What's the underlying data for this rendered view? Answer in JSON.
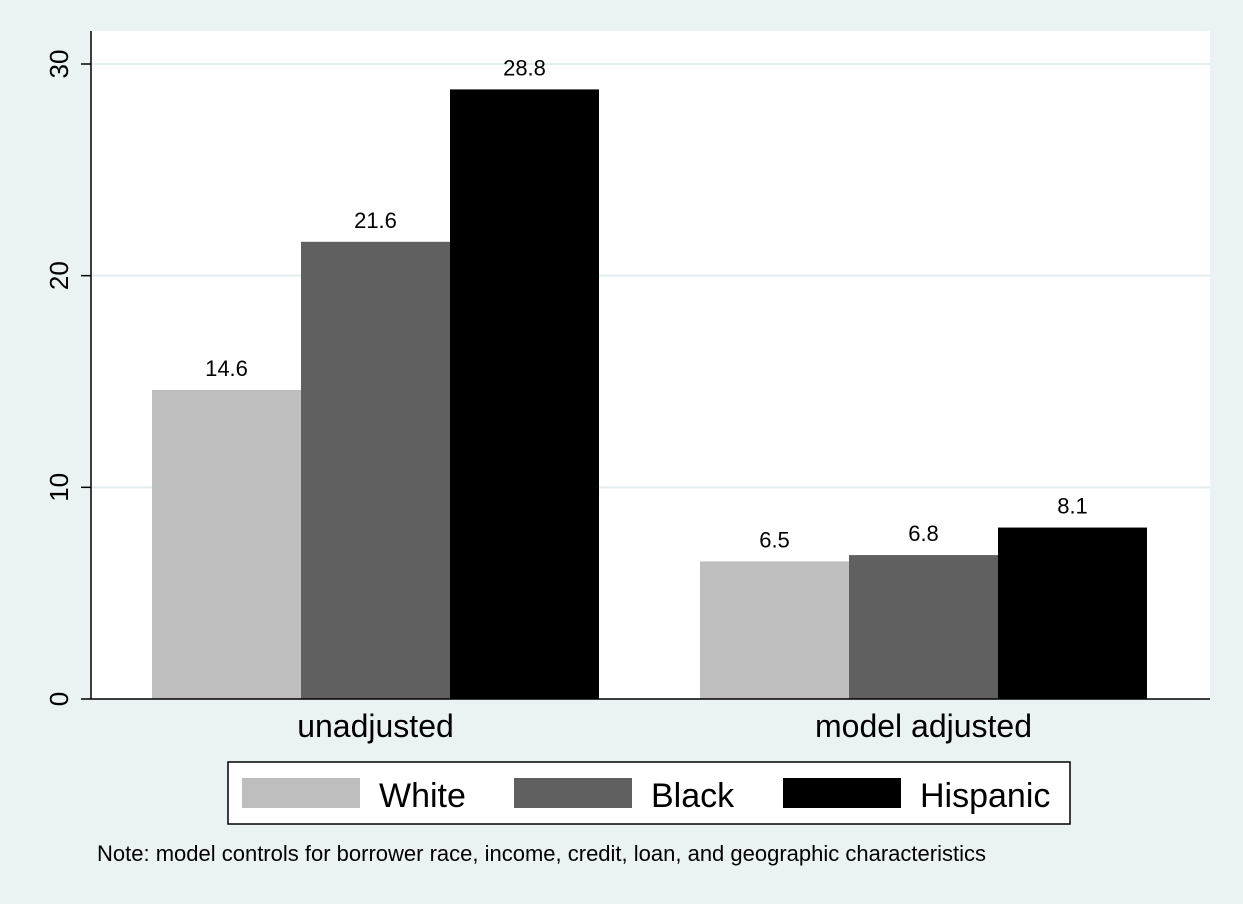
{
  "chart_data": {
    "type": "bar",
    "categories": [
      "unadjusted",
      "model adjusted"
    ],
    "series": [
      {
        "name": "White",
        "values": [
          14.6,
          6.5
        ],
        "color": "#bebebe"
      },
      {
        "name": "Black",
        "values": [
          21.6,
          6.8
        ],
        "color": "#606060"
      },
      {
        "name": "Hispanic",
        "values": [
          28.8,
          8.1
        ],
        "color": "#000000"
      }
    ],
    "data_labels": [
      [
        "14.6",
        "21.6",
        "28.8"
      ],
      [
        "6.5",
        "6.8",
        "8.1"
      ]
    ],
    "yticks": [
      0,
      10,
      20,
      30
    ],
    "ylim": [
      0,
      31.5
    ],
    "grid": true,
    "legend_position": "bottom",
    "note": "Note: model controls for borrower race, income, credit, loan, and geographic characteristics",
    "colors": {
      "plot_bg": "#ffffff",
      "outer_bg": "#eaf2f3",
      "grid": "#e4eeef"
    }
  }
}
